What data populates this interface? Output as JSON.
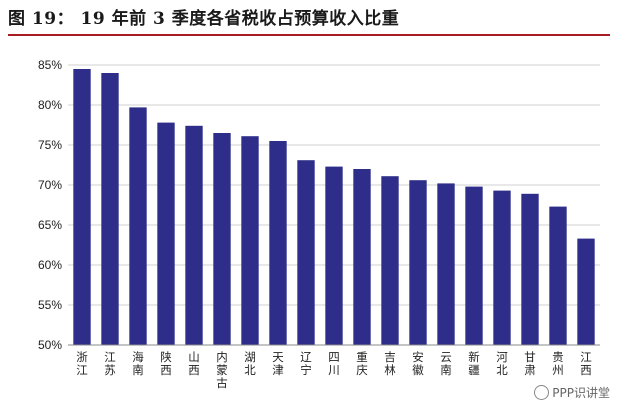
{
  "figure": {
    "title": "图 19： 19 年前 3 季度各省税收占预算收入比重",
    "watermark": "PPP识讲堂"
  },
  "chart_data": {
    "type": "bar",
    "title": "",
    "xlabel": "",
    "ylabel": "",
    "ylim": [
      0.5,
      0.85
    ],
    "yticks": [
      "50%",
      "55%",
      "60%",
      "65%",
      "70%",
      "75%",
      "80%",
      "85%"
    ],
    "grid": true,
    "categories": [
      "浙江",
      "江苏",
      "海南",
      "陕西",
      "山西",
      "内蒙古",
      "湖北",
      "天津",
      "辽宁",
      "四川",
      "重庆",
      "吉林",
      "安徽",
      "云南",
      "新疆",
      "河北",
      "甘肃",
      "贵州",
      "江西"
    ],
    "values": [
      0.845,
      0.84,
      0.797,
      0.778,
      0.774,
      0.765,
      0.761,
      0.755,
      0.731,
      0.723,
      0.72,
      0.711,
      0.706,
      0.702,
      0.698,
      0.693,
      0.689,
      0.673,
      0.633
    ],
    "colors": {
      "bar": "#2e2e8a",
      "grid": "#d0d0d0",
      "title_rule": "#a61c22"
    }
  }
}
